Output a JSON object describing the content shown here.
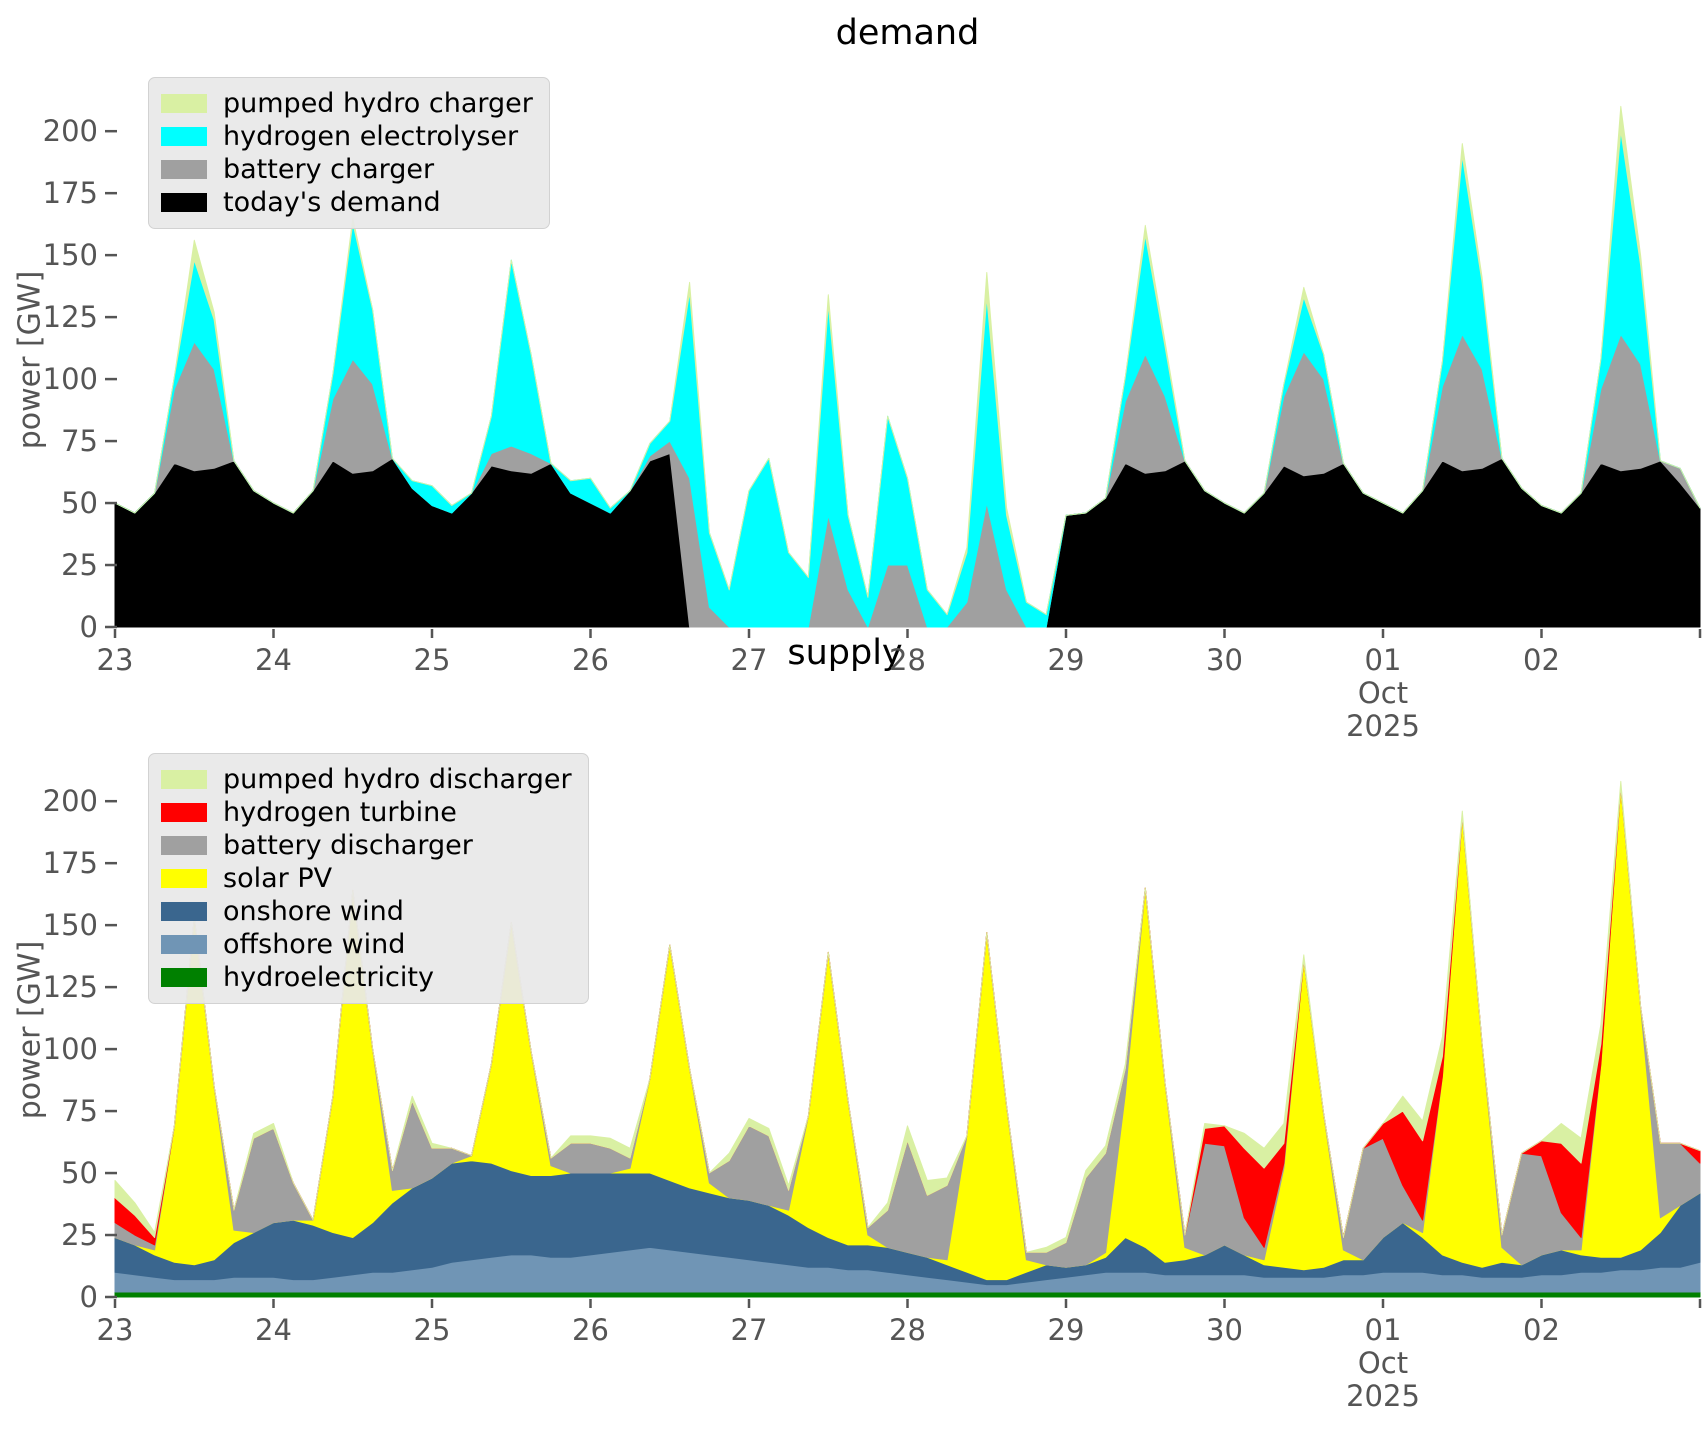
{
  "figure": {
    "background": "#ffffff",
    "tick_color": "#555555",
    "title_color": "#000000"
  },
  "chart_data": [
    {
      "id": "demand",
      "type": "area",
      "title": "demand",
      "ylabel": "power [GW]",
      "ylim": [
        0,
        215
      ],
      "yticks": [
        0,
        25,
        50,
        75,
        100,
        125,
        150,
        175,
        200
      ],
      "x_step_days": 0.125,
      "xtick_labels": [
        "23",
        "24",
        "25",
        "26",
        "27",
        "28",
        "29",
        "30",
        "01",
        "02"
      ],
      "x_sub_label": {
        "tick_index": 8,
        "lines": [
          "Oct",
          "2025"
        ]
      },
      "grid": false,
      "legend_position": "upper-left",
      "legend": [
        {
          "label": "pumped hydro charger",
          "color": "#d9f0a3"
        },
        {
          "label": "hydrogen electrolyser",
          "color": "#00ffff"
        },
        {
          "label": "battery charger",
          "color": "#a0a0a0"
        },
        {
          "label": "today's demand",
          "color": "#000000"
        }
      ],
      "series": [
        {
          "name": "today's demand",
          "key": "todays-demand",
          "color": "#000000",
          "values": [
            50,
            46,
            54,
            66,
            63,
            64,
            67,
            55,
            50,
            46,
            55,
            67,
            62,
            63,
            68,
            56,
            49,
            46,
            54,
            65,
            63,
            62,
            66,
            54,
            50,
            46,
            55,
            67,
            70,
            0,
            0,
            0,
            0,
            0,
            0,
            0,
            0,
            0,
            0,
            0,
            0,
            0,
            0,
            0,
            0,
            0,
            0,
            0,
            45,
            46,
            52,
            66,
            62,
            63,
            67,
            55,
            50,
            46,
            54,
            65,
            61,
            62,
            66,
            54,
            50,
            46,
            55,
            67,
            63,
            64,
            68,
            56,
            49,
            46,
            54,
            66,
            63,
            64,
            67,
            58,
            48
          ]
        },
        {
          "name": "battery charger",
          "key": "battery-charger",
          "color": "#a0a0a0",
          "values": [
            0,
            0,
            0,
            30,
            52,
            40,
            0,
            0,
            0,
            0,
            0,
            25,
            46,
            35,
            0,
            0,
            0,
            0,
            0,
            5,
            10,
            8,
            0,
            0,
            0,
            0,
            0,
            2,
            5,
            60,
            8,
            0,
            0,
            0,
            0,
            0,
            45,
            15,
            0,
            25,
            25,
            0,
            0,
            10,
            50,
            15,
            0,
            0,
            0,
            0,
            0,
            25,
            48,
            30,
            0,
            0,
            0,
            0,
            0,
            28,
            50,
            38,
            0,
            0,
            0,
            0,
            0,
            30,
            55,
            40,
            0,
            0,
            0,
            0,
            0,
            30,
            55,
            42,
            0,
            6,
            0
          ]
        },
        {
          "name": "hydrogen electrolyser",
          "key": "hydrogen-electrolyser",
          "color": "#00ffff",
          "values": [
            0,
            0,
            0,
            5,
            33,
            20,
            0,
            0,
            0,
            0,
            0,
            10,
            55,
            30,
            0,
            3,
            8,
            3,
            0,
            15,
            75,
            40,
            0,
            5,
            10,
            2,
            0,
            5,
            8,
            75,
            30,
            15,
            55,
            68,
            30,
            20,
            85,
            30,
            12,
            60,
            35,
            15,
            5,
            20,
            83,
            30,
            10,
            5,
            0,
            0,
            0,
            10,
            48,
            20,
            0,
            0,
            0,
            0,
            0,
            5,
            22,
            10,
            0,
            0,
            0,
            0,
            0,
            10,
            72,
            35,
            0,
            0,
            0,
            0,
            0,
            12,
            82,
            40,
            0,
            0,
            0
          ]
        },
        {
          "name": "pumped hydro charger",
          "key": "pumped-hydro-charger",
          "color": "#d9f0a3",
          "values": [
            0,
            0,
            0,
            0,
            8,
            3,
            0,
            0,
            0,
            0,
            0,
            0,
            2,
            0,
            0,
            0,
            0,
            0,
            0,
            0,
            0,
            0,
            0,
            0,
            0,
            0,
            0,
            0,
            0,
            4,
            0,
            0,
            0,
            0,
            0,
            0,
            4,
            0,
            0,
            0,
            0,
            0,
            0,
            2,
            10,
            3,
            0,
            0,
            0,
            0,
            0,
            0,
            4,
            2,
            0,
            0,
            0,
            0,
            0,
            0,
            4,
            0,
            0,
            0,
            0,
            0,
            0,
            0,
            5,
            2,
            0,
            0,
            0,
            0,
            0,
            0,
            10,
            4,
            0,
            0,
            0
          ]
        }
      ]
    },
    {
      "id": "supply",
      "type": "area",
      "title": "supply",
      "ylabel": "power [GW]",
      "ylim": [
        0,
        215
      ],
      "yticks": [
        0,
        25,
        50,
        75,
        100,
        125,
        150,
        175,
        200
      ],
      "x_step_days": 0.125,
      "xtick_labels": [
        "23",
        "24",
        "25",
        "26",
        "27",
        "28",
        "29",
        "30",
        "01",
        "02"
      ],
      "x_sub_label": {
        "tick_index": 8,
        "lines": [
          "Oct",
          "2025"
        ]
      },
      "grid": false,
      "legend_position": "upper-left",
      "legend": [
        {
          "label": "pumped hydro discharger",
          "color": "#d9f0a3"
        },
        {
          "label": "hydrogen turbine",
          "color": "#ff0000"
        },
        {
          "label": "battery discharger",
          "color": "#a0a0a0"
        },
        {
          "label": "solar PV",
          "color": "#ffff00"
        },
        {
          "label": "onshore wind",
          "color": "#3a668e"
        },
        {
          "label": "offshore wind",
          "color": "#7095b5"
        },
        {
          "label": "hydroelectricity",
          "color": "#008000"
        }
      ],
      "series": [
        {
          "name": "hydroelectricity",
          "key": "hydroelectricity",
          "color": "#008000",
          "values": [
            2,
            2,
            2,
            2,
            2,
            2,
            2,
            2,
            2,
            2,
            2,
            2,
            2,
            2,
            2,
            2,
            2,
            2,
            2,
            2,
            2,
            2,
            2,
            2,
            2,
            2,
            2,
            2,
            2,
            2,
            2,
            2,
            2,
            2,
            2,
            2,
            2,
            2,
            2,
            2,
            2,
            2,
            2,
            2,
            2,
            2,
            2,
            2,
            2,
            2,
            2,
            2,
            2,
            2,
            2,
            2,
            2,
            2,
            2,
            2,
            2,
            2,
            2,
            2,
            2,
            2,
            2,
            2,
            2,
            2,
            2,
            2,
            2,
            2,
            2,
            2,
            2,
            2,
            2,
            2,
            2
          ]
        },
        {
          "name": "offshore wind",
          "key": "offshore-wind",
          "color": "#7095b5",
          "values": [
            8,
            7,
            6,
            5,
            5,
            5,
            6,
            6,
            6,
            5,
            5,
            6,
            7,
            8,
            8,
            9,
            10,
            12,
            13,
            14,
            15,
            15,
            14,
            14,
            15,
            16,
            17,
            18,
            17,
            16,
            15,
            14,
            13,
            12,
            11,
            10,
            10,
            9,
            9,
            8,
            7,
            6,
            5,
            4,
            3,
            3,
            4,
            5,
            6,
            7,
            8,
            8,
            8,
            7,
            7,
            7,
            7,
            7,
            6,
            6,
            6,
            6,
            7,
            7,
            8,
            8,
            8,
            7,
            7,
            6,
            6,
            6,
            7,
            7,
            8,
            8,
            9,
            9,
            10,
            10,
            12
          ]
        },
        {
          "name": "onshore wind",
          "key": "onshore-wind",
          "color": "#3a668e",
          "values": [
            14,
            12,
            9,
            7,
            6,
            8,
            14,
            18,
            22,
            24,
            22,
            18,
            15,
            20,
            28,
            33,
            36,
            40,
            40,
            38,
            34,
            32,
            33,
            34,
            33,
            32,
            31,
            30,
            28,
            26,
            25,
            24,
            24,
            23,
            20,
            16,
            12,
            10,
            10,
            10,
            9,
            8,
            6,
            4,
            2,
            2,
            4,
            6,
            4,
            4,
            6,
            14,
            10,
            5,
            6,
            8,
            12,
            8,
            5,
            4,
            3,
            4,
            6,
            6,
            14,
            20,
            14,
            8,
            5,
            4,
            6,
            5,
            8,
            10,
            7,
            6,
            5,
            8,
            14,
            25,
            28
          ]
        },
        {
          "name": "solar PV",
          "key": "solar-pv",
          "color": "#ffff00",
          "values": [
            0,
            0,
            2,
            55,
            140,
            70,
            5,
            0,
            0,
            0,
            2,
            55,
            140,
            70,
            5,
            0,
            0,
            0,
            2,
            40,
            100,
            50,
            4,
            0,
            0,
            0,
            2,
            38,
            95,
            48,
            4,
            0,
            0,
            0,
            2,
            45,
            115,
            58,
            4,
            0,
            0,
            0,
            2,
            55,
            140,
            70,
            5,
            0,
            0,
            0,
            2,
            58,
            145,
            72,
            5,
            0,
            0,
            0,
            2,
            40,
            125,
            62,
            4,
            0,
            0,
            0,
            2,
            72,
            180,
            90,
            6,
            0,
            0,
            0,
            2,
            78,
            190,
            98,
            6,
            0,
            0
          ]
        },
        {
          "name": "battery discharger",
          "key": "battery-discharger",
          "color": "#a0a0a0",
          "values": [
            6,
            4,
            2,
            0,
            0,
            0,
            8,
            38,
            38,
            15,
            0,
            0,
            0,
            0,
            8,
            35,
            12,
            6,
            0,
            0,
            0,
            0,
            3,
            12,
            12,
            10,
            4,
            0,
            0,
            0,
            4,
            15,
            30,
            28,
            8,
            0,
            0,
            0,
            3,
            15,
            45,
            25,
            30,
            0,
            0,
            0,
            3,
            5,
            10,
            35,
            40,
            10,
            0,
            0,
            5,
            45,
            40,
            15,
            5,
            2,
            0,
            0,
            5,
            45,
            40,
            15,
            5,
            0,
            0,
            0,
            5,
            45,
            40,
            15,
            5,
            0,
            0,
            0,
            30,
            25,
            12
          ]
        },
        {
          "name": "hydrogen turbine",
          "key": "hydrogen-turbine",
          "color": "#ff0000",
          "values": [
            10,
            8,
            3,
            0,
            0,
            0,
            0,
            0,
            0,
            0,
            0,
            0,
            0,
            0,
            0,
            0,
            0,
            0,
            0,
            0,
            0,
            0,
            0,
            0,
            0,
            0,
            0,
            0,
            0,
            0,
            0,
            0,
            0,
            0,
            0,
            0,
            0,
            0,
            0,
            0,
            0,
            0,
            0,
            0,
            0,
            0,
            0,
            0,
            0,
            0,
            0,
            0,
            0,
            0,
            0,
            6,
            8,
            28,
            32,
            8,
            0,
            0,
            0,
            0,
            6,
            30,
            32,
            8,
            0,
            0,
            0,
            0,
            6,
            28,
            30,
            8,
            0,
            0,
            0,
            0,
            5
          ]
        },
        {
          "name": "pumped hydro discharger",
          "key": "pumped-hydro-discharger",
          "color": "#d9f0a3",
          "values": [
            7,
            5,
            2,
            0,
            0,
            0,
            0,
            2,
            2,
            0,
            0,
            0,
            0,
            0,
            0,
            2,
            2,
            0,
            0,
            0,
            0,
            0,
            0,
            3,
            3,
            4,
            4,
            0,
            0,
            0,
            0,
            3,
            3,
            3,
            2,
            0,
            0,
            0,
            0,
            3,
            6,
            6,
            3,
            0,
            0,
            0,
            0,
            2,
            2,
            3,
            3,
            2,
            0,
            0,
            0,
            2,
            0,
            6,
            8,
            8,
            2,
            0,
            0,
            0,
            0,
            6,
            8,
            8,
            2,
            0,
            0,
            0,
            0,
            8,
            10,
            8,
            2,
            0,
            0,
            0,
            0
          ]
        }
      ]
    }
  ]
}
